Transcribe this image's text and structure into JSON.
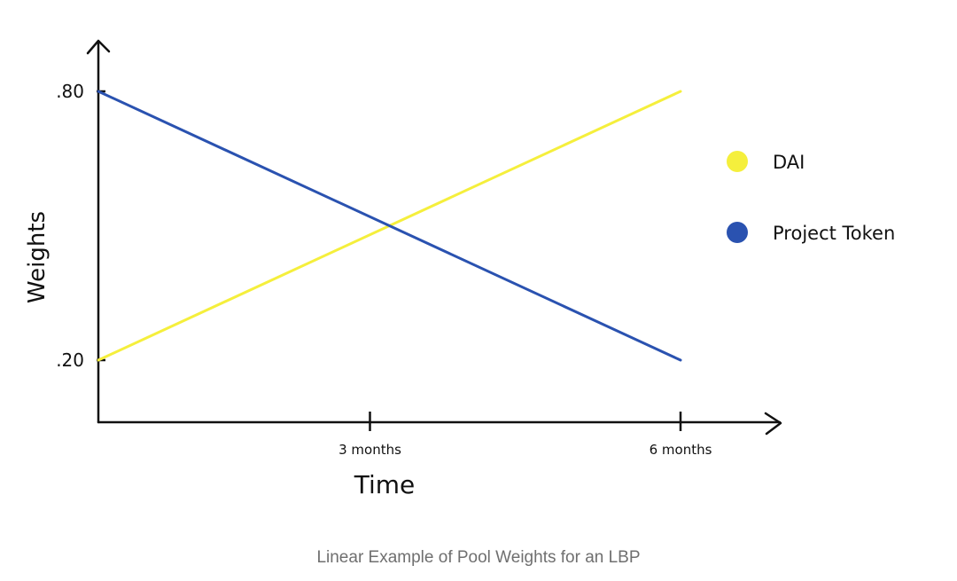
{
  "caption": "Linear Example of Pool Weights for an LBP",
  "chart_data": {
    "type": "line",
    "title": "",
    "xlabel": "Time",
    "ylabel": "Weights",
    "x": [
      "0",
      "3 months",
      "6 months"
    ],
    "x_ticks": [
      {
        "label": "3 months",
        "value": 3
      },
      {
        "label": "6 months",
        "value": 6
      }
    ],
    "y_ticks": [
      {
        "label": ".80",
        "value": 0.8
      },
      {
        "label": ".20",
        "value": 0.2
      }
    ],
    "series": [
      {
        "name": "DAI",
        "color": "#f5ef3c",
        "points": [
          [
            0,
            0.2
          ],
          [
            6,
            0.8
          ]
        ]
      },
      {
        "name": "Project Token",
        "color": "#2a52b0",
        "points": [
          [
            0,
            0.8
          ],
          [
            6,
            0.2
          ]
        ]
      }
    ],
    "xlim": [
      0,
      6
    ],
    "ylim": [
      0.2,
      0.8
    ],
    "legend": "right",
    "grid": false
  }
}
